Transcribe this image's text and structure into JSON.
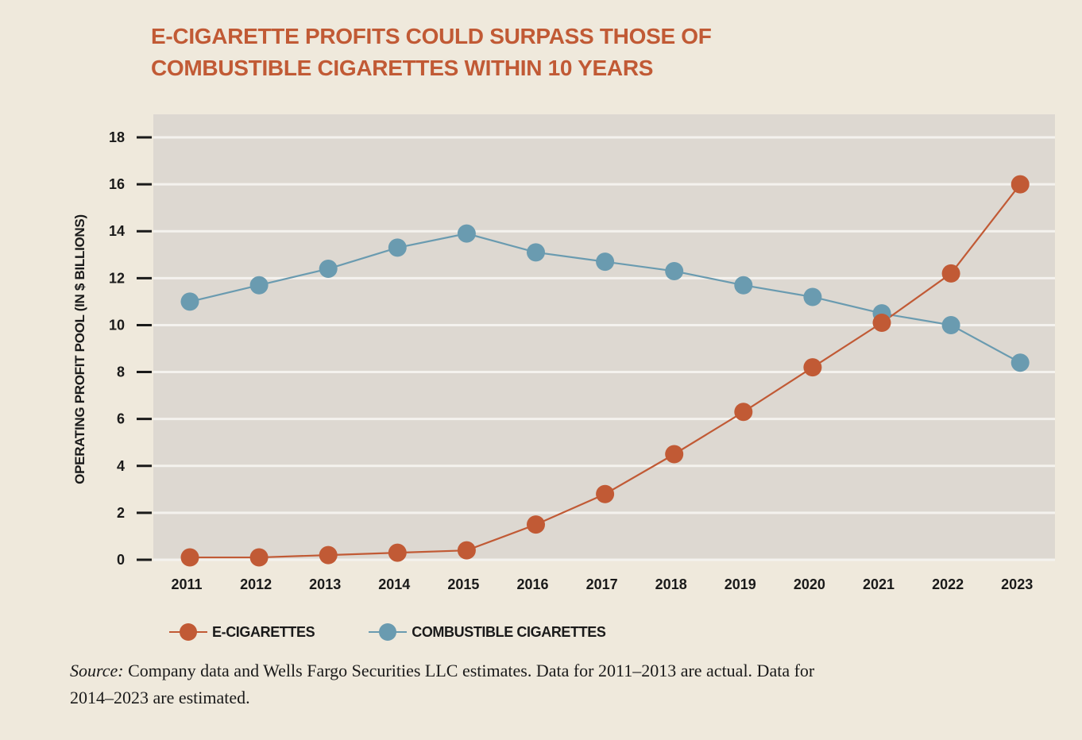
{
  "title_lines": [
    "E-CIGARETTE PROFITS COULD SURPASS THOSE OF",
    "COMBUSTIBLE CIGARETTES WITHIN 10 YEARS"
  ],
  "colors": {
    "background": "#efe9dc",
    "plot_background": "#ddd8d1",
    "gridline": "#f4f2ee",
    "title": "#c15a35",
    "e_cigarettes": "#c15a35",
    "combustible": "#6a9bb0",
    "text": "#1a1a1a"
  },
  "source": {
    "label": "Source:",
    "text": " Company data and Wells Fargo Securities LLC estimates. Data for 2011–2013 are actual. Data for 2014–2023 are estimated."
  },
  "chart_data": {
    "type": "line",
    "title": "E-CIGARETTE PROFITS COULD SURPASS THOSE OF COMBUSTIBLE CIGARETTES WITHIN 10 YEARS",
    "xlabel": "",
    "ylabel": "OPERATING PROFIT POOL (IN $ BILLIONS)",
    "x": [
      "2011",
      "2012",
      "2013",
      "2014",
      "2015",
      "2016",
      "2017",
      "2018",
      "2019",
      "2020",
      "2021",
      "2022",
      "2023"
    ],
    "yticks": [
      0,
      2,
      4,
      6,
      8,
      10,
      12,
      14,
      16,
      18
    ],
    "ylim": [
      0,
      18
    ],
    "grid": true,
    "legend_position": "bottom-left",
    "series": [
      {
        "name": "E-CIGARETTES",
        "color": "#c15a35",
        "values": [
          0.1,
          0.1,
          0.2,
          0.3,
          0.4,
          1.5,
          2.8,
          4.5,
          6.3,
          8.2,
          10.1,
          12.2,
          16.0
        ]
      },
      {
        "name": "COMBUSTIBLE CIGARETTES",
        "color": "#6a9bb0",
        "values": [
          11.0,
          11.7,
          12.4,
          13.3,
          13.9,
          13.1,
          12.7,
          12.3,
          11.7,
          11.2,
          10.5,
          10.0,
          8.4
        ]
      }
    ]
  }
}
